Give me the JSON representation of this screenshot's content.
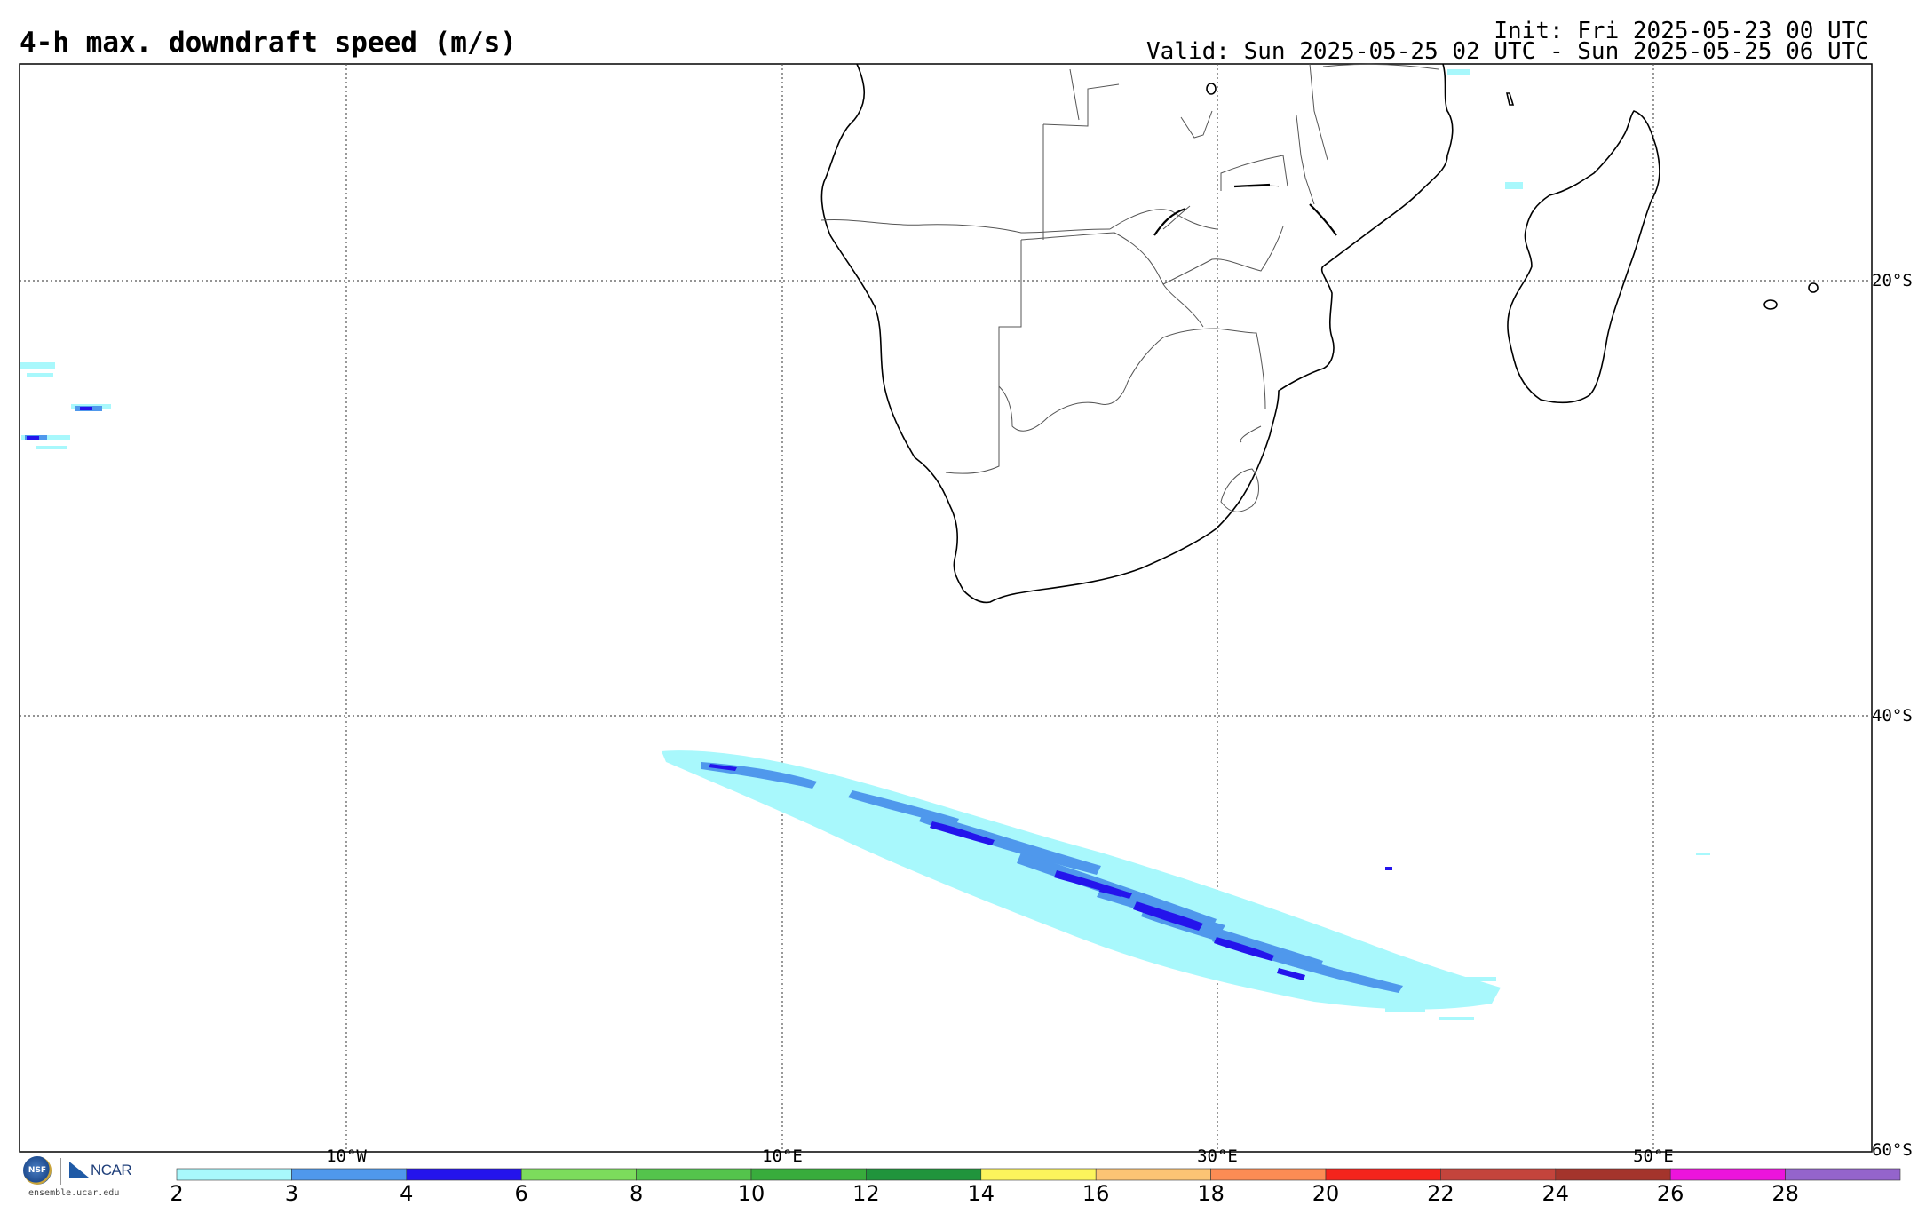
{
  "header": {
    "title": "4-h max. downdraft speed (m/s)",
    "init": "Init: Fri 2025-05-23 00 UTC",
    "valid": "Valid: Sun 2025-05-25 02 UTC - Sun 2025-05-25 06 UTC"
  },
  "map": {
    "lon_range": [
      -25,
      60
    ],
    "lat_range": [
      -60,
      -10
    ],
    "lat_labels": [
      "20°S",
      "40°S",
      "60°S"
    ],
    "lon_labels": [
      "10°W",
      "10°E",
      "30°E",
      "50°E"
    ],
    "grid": "dotted"
  },
  "colorbar": {
    "levels": [
      "2",
      "3",
      "4",
      "6",
      "8",
      "10",
      "12",
      "14",
      "16",
      "18",
      "20",
      "22",
      "24",
      "26",
      "28"
    ],
    "colors": [
      "#a8f8fc",
      "#4f98ec",
      "#2414ec",
      "#7cdc5c",
      "#54c44c",
      "#38ac3c",
      "#20943c",
      "#fcf45c",
      "#fcc474",
      "#fc8c54",
      "#f4241c",
      "#c4443c",
      "#a4342c",
      "#ec14dc",
      "#9464cc"
    ]
  },
  "logos": {
    "nsf": "NSF",
    "ncar": "NCAR",
    "site": "ensemble.ucar.edu"
  }
}
